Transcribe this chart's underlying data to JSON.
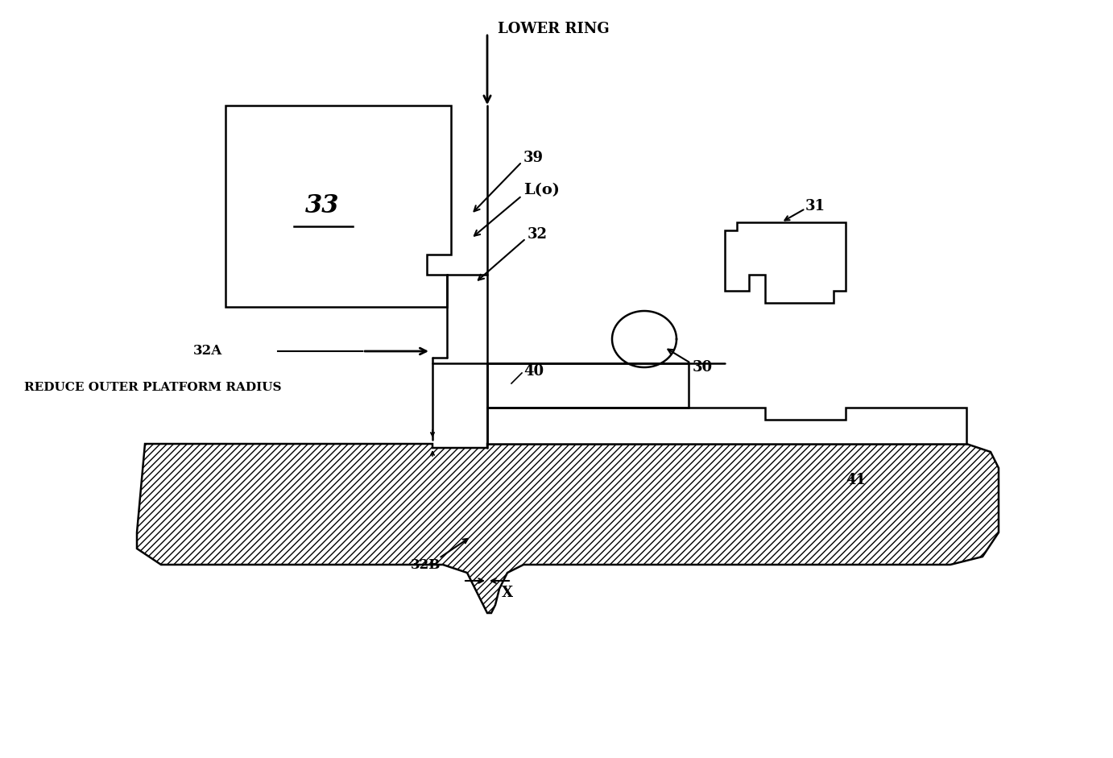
{
  "bg_color": "#ffffff",
  "line_color": "#000000",
  "hatch_color": "#000000",
  "title": "",
  "labels": {
    "lower_ring": "LOWER RING",
    "reduce": "REDUCE OUTER PLATFORM RADIUS",
    "label_33": "33",
    "label_39": "39",
    "label_Lo": "L(o)",
    "label_32": "32",
    "label_32A": "32A",
    "label_32B": "32B",
    "label_31": "31",
    "label_30": "30",
    "label_40": "40",
    "label_41": "41",
    "label_X": "X"
  }
}
